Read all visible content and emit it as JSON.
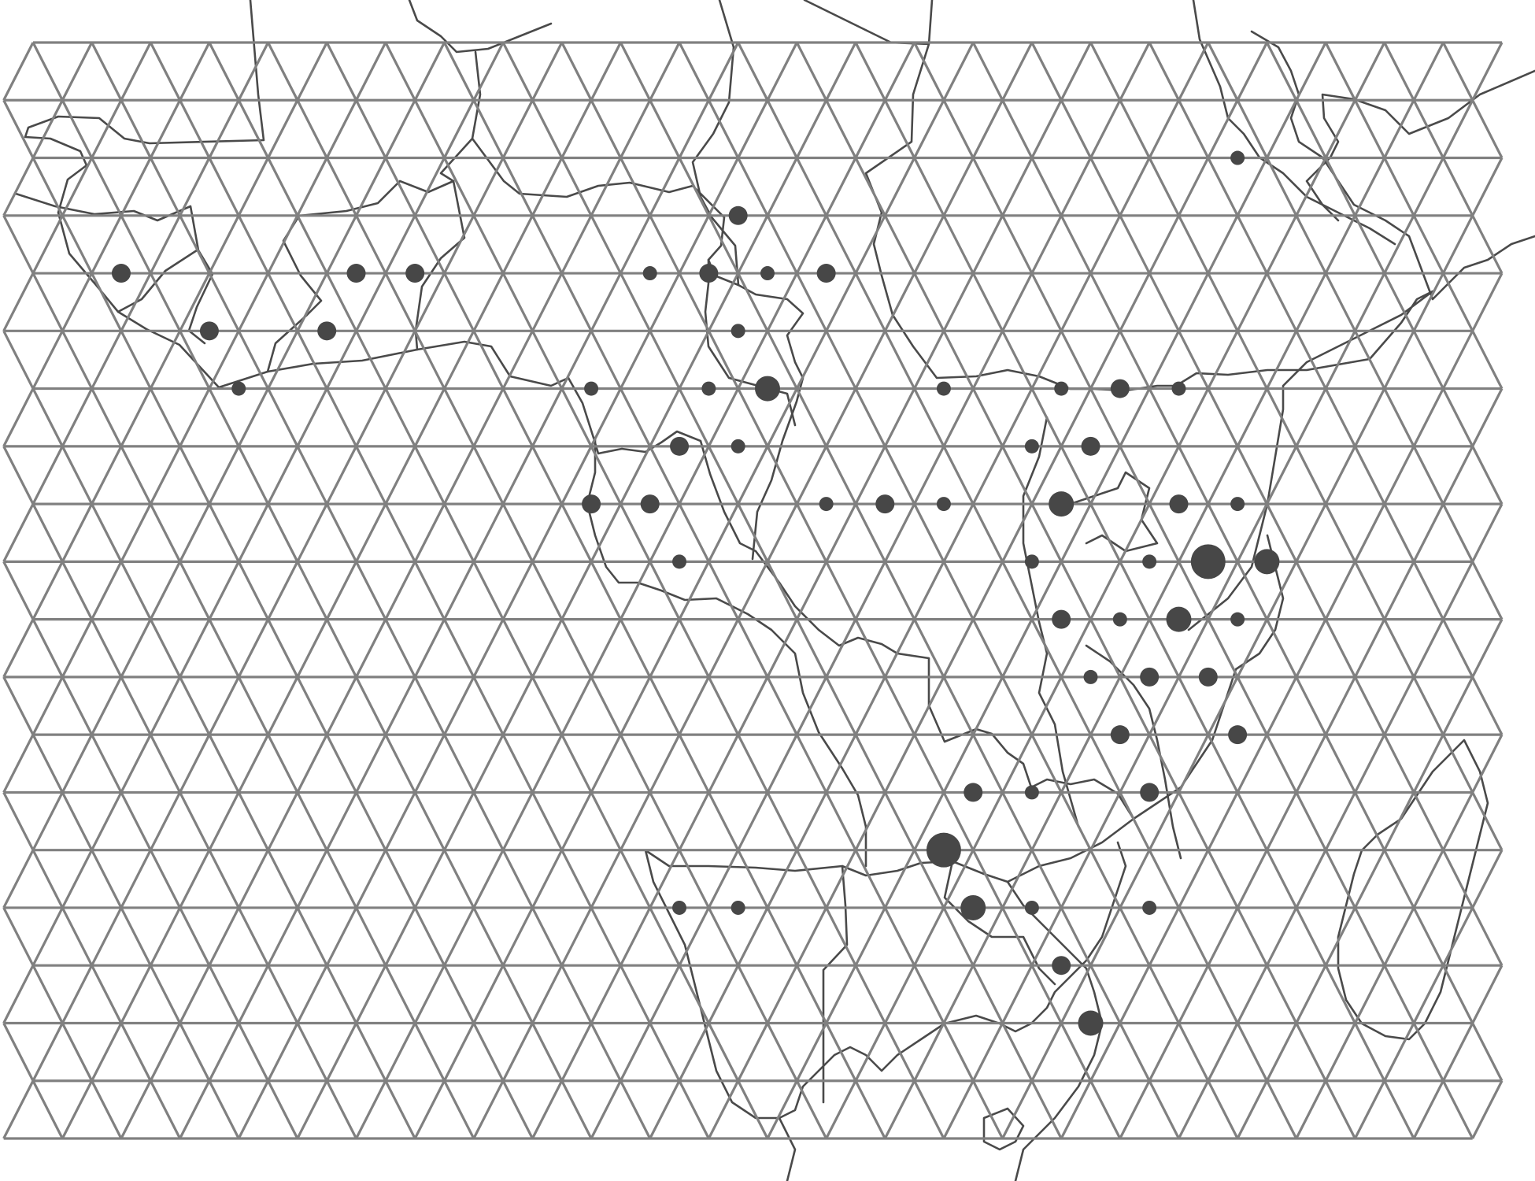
{
  "map": {
    "colors": {
      "background": "#ffffff",
      "grid": "#808080",
      "borders": "#4a4a4a",
      "points": "#474747"
    },
    "grid": {
      "type": "triangular",
      "rows": 19,
      "columns": 25
    },
    "point_sizes": [
      "small",
      "medium",
      "large",
      "xlarge"
    ],
    "points": [
      {
        "row": 2,
        "col": 20.5,
        "size": "small"
      },
      {
        "row": 3,
        "col": 12,
        "size": "medium"
      },
      {
        "row": 4,
        "col": 1.5,
        "size": "medium"
      },
      {
        "row": 4,
        "col": 5.5,
        "size": "medium"
      },
      {
        "row": 4,
        "col": 6.5,
        "size": "medium"
      },
      {
        "row": 4,
        "col": 10.5,
        "size": "small"
      },
      {
        "row": 4,
        "col": 11.5,
        "size": "medium"
      },
      {
        "row": 4,
        "col": 12.5,
        "size": "small"
      },
      {
        "row": 4,
        "col": 13.5,
        "size": "medium"
      },
      {
        "row": 5,
        "col": 3,
        "size": "medium"
      },
      {
        "row": 5,
        "col": 5,
        "size": "medium"
      },
      {
        "row": 5,
        "col": 12,
        "size": "small"
      },
      {
        "row": 6,
        "col": 3.5,
        "size": "small"
      },
      {
        "row": 6,
        "col": 9.5,
        "size": "small"
      },
      {
        "row": 6,
        "col": 11.5,
        "size": "small"
      },
      {
        "row": 6,
        "col": 12.5,
        "size": "large"
      },
      {
        "row": 6,
        "col": 15.5,
        "size": "small"
      },
      {
        "row": 6,
        "col": 17.5,
        "size": "small"
      },
      {
        "row": 6,
        "col": 18.5,
        "size": "medium"
      },
      {
        "row": 6,
        "col": 19.5,
        "size": "small"
      },
      {
        "row": 7,
        "col": 11,
        "size": "medium"
      },
      {
        "row": 7,
        "col": 12,
        "size": "small"
      },
      {
        "row": 7,
        "col": 17,
        "size": "small"
      },
      {
        "row": 7,
        "col": 18,
        "size": "medium"
      },
      {
        "row": 8,
        "col": 9.5,
        "size": "medium"
      },
      {
        "row": 8,
        "col": 10.5,
        "size": "medium"
      },
      {
        "row": 8,
        "col": 13.5,
        "size": "small"
      },
      {
        "row": 8,
        "col": 14.5,
        "size": "medium"
      },
      {
        "row": 8,
        "col": 15.5,
        "size": "small"
      },
      {
        "row": 8,
        "col": 17.5,
        "size": "large"
      },
      {
        "row": 8,
        "col": 19.5,
        "size": "medium"
      },
      {
        "row": 8,
        "col": 20.5,
        "size": "small"
      },
      {
        "row": 9,
        "col": 11,
        "size": "small"
      },
      {
        "row": 9,
        "col": 17,
        "size": "small"
      },
      {
        "row": 9,
        "col": 19,
        "size": "small"
      },
      {
        "row": 9,
        "col": 20,
        "size": "xlarge"
      },
      {
        "row": 9,
        "col": 21,
        "size": "large"
      },
      {
        "row": 10,
        "col": 17.5,
        "size": "medium"
      },
      {
        "row": 10,
        "col": 18.5,
        "size": "small"
      },
      {
        "row": 10,
        "col": 19.5,
        "size": "large"
      },
      {
        "row": 10,
        "col": 20.5,
        "size": "small"
      },
      {
        "row": 11,
        "col": 18,
        "size": "small"
      },
      {
        "row": 11,
        "col": 19,
        "size": "medium"
      },
      {
        "row": 11,
        "col": 20,
        "size": "medium"
      },
      {
        "row": 12,
        "col": 18.5,
        "size": "medium"
      },
      {
        "row": 12,
        "col": 20.5,
        "size": "medium"
      },
      {
        "row": 13,
        "col": 16,
        "size": "medium"
      },
      {
        "row": 13,
        "col": 17,
        "size": "small"
      },
      {
        "row": 13,
        "col": 19,
        "size": "medium"
      },
      {
        "row": 14,
        "col": 15.5,
        "size": "xlarge"
      },
      {
        "row": 15,
        "col": 11,
        "size": "small"
      },
      {
        "row": 15,
        "col": 12,
        "size": "small"
      },
      {
        "row": 15,
        "col": 16,
        "size": "large"
      },
      {
        "row": 15,
        "col": 17,
        "size": "small"
      },
      {
        "row": 15,
        "col": 19,
        "size": "small"
      },
      {
        "row": 16,
        "col": 17.5,
        "size": "medium"
      },
      {
        "row": 17,
        "col": 18,
        "size": "large"
      }
    ]
  }
}
